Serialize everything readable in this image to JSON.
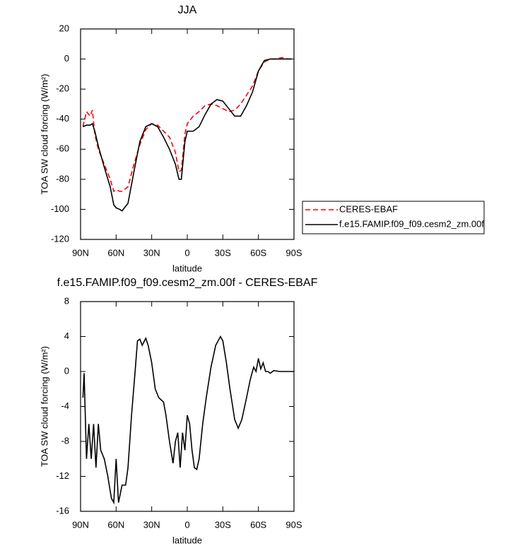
{
  "chart_data": [
    {
      "type": "line",
      "title": "JJA",
      "xlabel": "latitude",
      "ylabel": "TOA SW cloud forcing (W/m²)",
      "x": [
        88,
        85,
        82,
        80,
        78,
        75,
        70,
        65,
        62,
        60,
        57,
        55,
        50,
        45,
        40,
        35,
        30,
        25,
        20,
        15,
        10,
        7,
        5,
        2,
        0,
        -5,
        -10,
        -15,
        -20,
        -25,
        -30,
        -35,
        -40,
        -45,
        -50,
        -55,
        -60,
        -65,
        -70,
        -75,
        -80,
        -85,
        -88
      ],
      "series": [
        {
          "name": "CERES-EBAF",
          "color": "#ff0000",
          "dash": true,
          "values": [
            -45,
            -35,
            -38,
            -34,
            -50,
            -60,
            -70,
            -80,
            -88,
            -87,
            -88,
            -88,
            -85,
            -70,
            -57,
            -47,
            -43,
            -44,
            -48,
            -52,
            -62,
            -75,
            -74,
            -50,
            -43,
            -38,
            -35,
            -31,
            -30,
            -31,
            -33,
            -35,
            -34,
            -30,
            -24,
            -18,
            -8,
            -2,
            0,
            0,
            1,
            0,
            0
          ]
        },
        {
          "name": "f.e15.FAMIP.f09_f09.cesm2_zm.00f",
          "color": "#000000",
          "dash": false,
          "values": [
            -45,
            -44,
            -44,
            -43,
            -48,
            -58,
            -72,
            -85,
            -97,
            -99,
            -100,
            -101,
            -96,
            -75,
            -55,
            -45,
            -43,
            -45,
            -52,
            -60,
            -70,
            -80,
            -80,
            -55,
            -48,
            -48,
            -45,
            -37,
            -30,
            -27,
            -28,
            -33,
            -38,
            -38,
            -31,
            -22,
            -8,
            -1,
            0,
            0,
            0,
            0,
            0
          ]
        }
      ],
      "xlim": [
        90,
        -90
      ],
      "xticks": [
        {
          "value": 90,
          "label": "90N"
        },
        {
          "value": 60,
          "label": "60N"
        },
        {
          "value": 30,
          "label": "30N"
        },
        0,
        {
          "value": -30,
          "label": "30S"
        },
        {
          "value": -60,
          "label": "60S"
        },
        {
          "value": -90,
          "label": "90S"
        }
      ],
      "ylim": [
        -120,
        20
      ],
      "yticks": [
        -120,
        -100,
        -80,
        -60,
        -40,
        -20,
        0,
        20
      ]
    },
    {
      "type": "line",
      "title": "f.e15.FAMIP.f09_f09.cesm2_zm.00f - CERES-EBAF",
      "xlabel": "latitude",
      "ylabel": "TOA SW cloud forcing (W/m²)",
      "x": [
        88,
        87,
        85,
        83,
        81,
        79,
        77,
        75,
        73,
        70,
        67,
        64,
        62,
        60,
        58,
        55,
        52,
        50,
        47,
        44,
        42,
        40,
        38,
        35,
        33,
        30,
        27,
        24,
        20,
        18,
        15,
        12,
        10,
        8,
        6,
        4,
        2,
        0,
        -2,
        -4,
        -6,
        -8,
        -10,
        -13,
        -16,
        -20,
        -24,
        -28,
        -30,
        -33,
        -36,
        -40,
        -43,
        -46,
        -50,
        -53,
        -56,
        -58,
        -60,
        -62,
        -64,
        -66,
        -68,
        -70,
        -73,
        -78,
        -85,
        -90
      ],
      "series": [
        {
          "color": "#000000",
          "dash": false,
          "values": [
            -3,
            -0.2,
            -10,
            -6,
            -10,
            -6,
            -11,
            -6,
            -9,
            -10,
            -12,
            -14.5,
            -15,
            -10,
            -15,
            -13,
            -13,
            -11,
            -5,
            0,
            3.5,
            3.7,
            3,
            3.8,
            3,
            1,
            -2,
            -3,
            -3.5,
            -5,
            -8,
            -10.5,
            -8,
            -7,
            -11,
            -7,
            -9,
            -5,
            -6,
            -9,
            -11,
            -11.2,
            -10,
            -6,
            -3,
            0.5,
            3,
            4,
            3.5,
            1,
            -2,
            -5.5,
            -6.5,
            -5.5,
            -3,
            -1,
            0.5,
            0,
            1.5,
            0.3,
            1,
            0,
            0,
            -0.2,
            0.1,
            0,
            0,
            0
          ]
        }
      ],
      "xlim": [
        90,
        -90
      ],
      "xticks": [
        {
          "value": 90,
          "label": "90N"
        },
        {
          "value": 60,
          "label": "60N"
        },
        {
          "value": 30,
          "label": "30N"
        },
        0,
        {
          "value": -30,
          "label": "30S"
        },
        {
          "value": -60,
          "label": "60S"
        },
        {
          "value": -90,
          "label": "90S"
        }
      ],
      "ylim": [
        -16,
        8
      ],
      "yticks": [
        -16,
        -12,
        -8,
        -4,
        0,
        4,
        8
      ]
    }
  ]
}
